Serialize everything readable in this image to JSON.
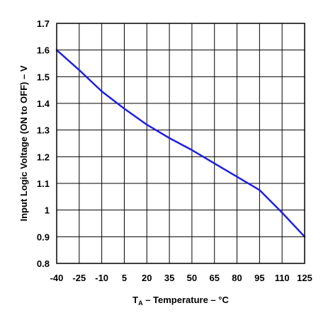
{
  "chart_data": {
    "type": "line",
    "title": "",
    "xlabel": {
      "prefix": "T",
      "subscript": "A",
      "suffix": " – Temperature – °C"
    },
    "ylabel": "Input Logic Voltage (ON to OFF) – V",
    "xlim": [
      -40,
      125
    ],
    "ylim": [
      0.8,
      1.7
    ],
    "grid": true,
    "x_ticks": [
      -40,
      -25,
      -10,
      5,
      20,
      35,
      50,
      65,
      80,
      95,
      110,
      125
    ],
    "y_ticks": [
      0.8,
      0.9,
      1.0,
      1.1,
      1.2,
      1.3,
      1.4,
      1.5,
      1.6,
      1.7
    ],
    "y_tick_labels": [
      "0.8",
      "0.9",
      "1",
      "1.1",
      "1.2",
      "1.3",
      "1.4",
      "1.5",
      "1.6",
      "1.7"
    ],
    "series": [
      {
        "color": "#1f1fe0",
        "x": [
          -40,
          -25,
          -10,
          5,
          20,
          35,
          50,
          65,
          80,
          95,
          110,
          125
        ],
        "y": [
          1.6,
          1.525,
          1.445,
          1.38,
          1.32,
          1.27,
          1.225,
          1.175,
          1.125,
          1.075,
          0.99,
          0.9
        ]
      }
    ]
  }
}
